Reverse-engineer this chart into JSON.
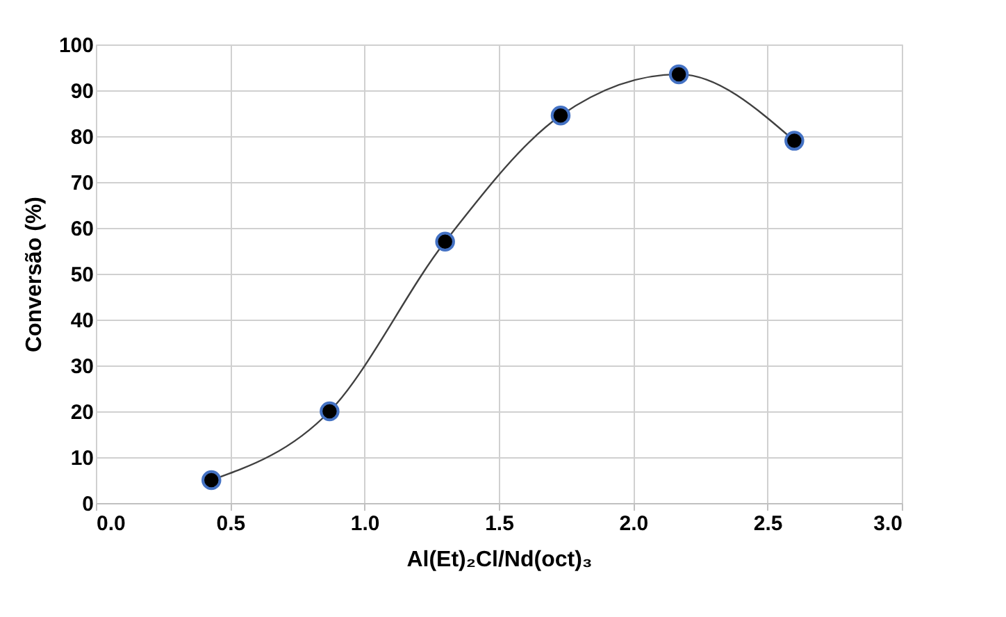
{
  "chart_data": {
    "type": "line",
    "xlabel": "Al(Et)₂Cl/Nd(oct)₃",
    "ylabel": "Conversão (%)",
    "x": [
      0.43,
      0.87,
      1.3,
      1.73,
      2.17,
      2.6
    ],
    "series": [
      {
        "color": "#404040",
        "values": [
          5,
          20,
          57,
          84.5,
          93.5,
          79
        ]
      }
    ],
    "marker": "circle",
    "line_style": "solid",
    "grid": true,
    "xlim": [
      0,
      3
    ],
    "xticks": [
      {
        "value": 0,
        "label": "0.0"
      },
      0.5,
      {
        "value": 1,
        "label": "1.0"
      },
      1.5,
      {
        "value": 2,
        "label": "2.0"
      },
      2.5,
      {
        "value": 3,
        "label": "3.0"
      }
    ],
    "ylim": [
      0,
      100
    ],
    "yticks": [
      0,
      10,
      20,
      30,
      40,
      50,
      60,
      70,
      80,
      90,
      100
    ]
  }
}
